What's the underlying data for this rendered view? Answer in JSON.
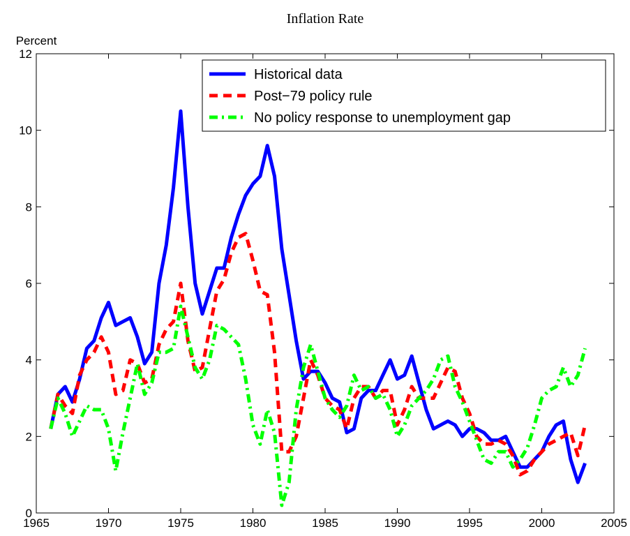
{
  "chart_data": {
    "type": "line",
    "title": "Inflation Rate",
    "y_label": "Percent",
    "x": [
      1966,
      1966.5,
      1967,
      1967.5,
      1968,
      1968.5,
      1969,
      1969.5,
      1970,
      1970.5,
      1971,
      1971.5,
      1972,
      1972.5,
      1973,
      1973.5,
      1974,
      1974.5,
      1975,
      1975.5,
      1976,
      1976.5,
      1977,
      1977.5,
      1978,
      1978.5,
      1979,
      1979.5,
      1980,
      1980.5,
      1981,
      1981.5,
      1982,
      1982.5,
      1983,
      1983.5,
      1984,
      1984.5,
      1985,
      1985.5,
      1986,
      1986.5,
      1987,
      1987.5,
      1988,
      1988.5,
      1989,
      1989.5,
      1990,
      1990.5,
      1991,
      1991.5,
      1992,
      1992.5,
      1993,
      1993.5,
      1994,
      1994.5,
      1995,
      1995.5,
      1996,
      1996.5,
      1997,
      1997.5,
      1998,
      1998.5,
      1999,
      1999.5,
      2000,
      2000.5,
      2001,
      2001.5,
      2002,
      2002.5,
      2003
    ],
    "series": [
      {
        "name": "Historical data",
        "color": "#0000ff",
        "dash": "solid",
        "values": [
          2.2,
          3.1,
          3.3,
          2.9,
          3.5,
          4.3,
          4.5,
          5.1,
          5.5,
          4.9,
          5.0,
          5.1,
          4.6,
          3.9,
          4.2,
          6.0,
          7.0,
          8.5,
          10.5,
          8.0,
          6.0,
          5.2,
          5.8,
          6.4,
          6.4,
          7.2,
          7.8,
          8.3,
          8.6,
          8.8,
          9.6,
          8.8,
          6.9,
          5.7,
          4.5,
          3.5,
          3.7,
          3.7,
          3.4,
          3.0,
          2.9,
          2.1,
          2.2,
          3.0,
          3.2,
          3.2,
          3.6,
          4.0,
          3.5,
          3.6,
          4.1,
          3.4,
          2.7,
          2.2,
          2.3,
          2.4,
          2.3,
          2.0,
          2.2,
          2.2,
          2.1,
          1.9,
          1.9,
          2.0,
          1.6,
          1.2,
          1.2,
          1.4,
          1.6,
          2.0,
          2.3,
          2.4,
          1.4,
          0.8,
          1.3
        ]
      },
      {
        "name": "Post−79 policy rule",
        "color": "#ff0000",
        "dash": "dashed",
        "values": [
          2.2,
          3.1,
          2.8,
          2.6,
          3.6,
          4.0,
          4.2,
          4.6,
          4.2,
          3.1,
          3.2,
          4.0,
          3.9,
          3.4,
          3.5,
          4.4,
          4.8,
          5.0,
          6.0,
          4.5,
          3.7,
          3.8,
          4.8,
          5.8,
          6.1,
          6.8,
          7.2,
          7.3,
          6.6,
          5.8,
          5.7,
          4.2,
          1.6,
          1.6,
          2.0,
          3.0,
          4.0,
          3.6,
          3.0,
          2.8,
          2.7,
          2.2,
          3.0,
          3.3,
          3.3,
          3.0,
          3.2,
          3.2,
          2.3,
          2.7,
          3.3,
          3.0,
          3.0,
          3.0,
          3.4,
          3.8,
          3.7,
          3.0,
          2.6,
          2.0,
          1.8,
          1.8,
          1.9,
          1.8,
          1.5,
          1.0,
          1.1,
          1.4,
          1.6,
          1.8,
          1.9,
          2.0,
          2.1,
          1.5,
          2.3
        ]
      },
      {
        "name": "No policy response to unemployment gap",
        "color": "#00ff00",
        "dash": "dashdot",
        "values": [
          2.2,
          3.0,
          2.6,
          2.0,
          2.4,
          2.8,
          2.7,
          2.7,
          2.2,
          1.1,
          2.1,
          3.0,
          3.9,
          3.1,
          3.4,
          4.2,
          4.2,
          4.3,
          5.4,
          4.6,
          3.8,
          3.5,
          4.0,
          4.9,
          4.8,
          4.6,
          4.4,
          3.5,
          2.3,
          1.8,
          2.7,
          2.1,
          0.2,
          0.8,
          2.7,
          3.8,
          4.4,
          3.7,
          3.0,
          2.7,
          2.5,
          2.8,
          3.6,
          3.2,
          3.3,
          3.0,
          3.1,
          2.7,
          2.0,
          2.3,
          2.8,
          3.0,
          3.2,
          3.5,
          4.0,
          4.1,
          3.3,
          2.9,
          2.4,
          1.9,
          1.4,
          1.3,
          1.6,
          1.6,
          1.2,
          1.4,
          1.7,
          2.3,
          3.0,
          3.2,
          3.3,
          3.8,
          3.3,
          3.6,
          4.3
        ]
      }
    ],
    "xlim": [
      1965,
      2005
    ],
    "xticks": [
      1965,
      1970,
      1975,
      1980,
      1985,
      1990,
      1995,
      2000,
      2005
    ],
    "ylim": [
      0,
      12
    ],
    "yticks": [
      0,
      2,
      4,
      6,
      8,
      10,
      12
    ],
    "legend": "upper right",
    "grid": false
  }
}
